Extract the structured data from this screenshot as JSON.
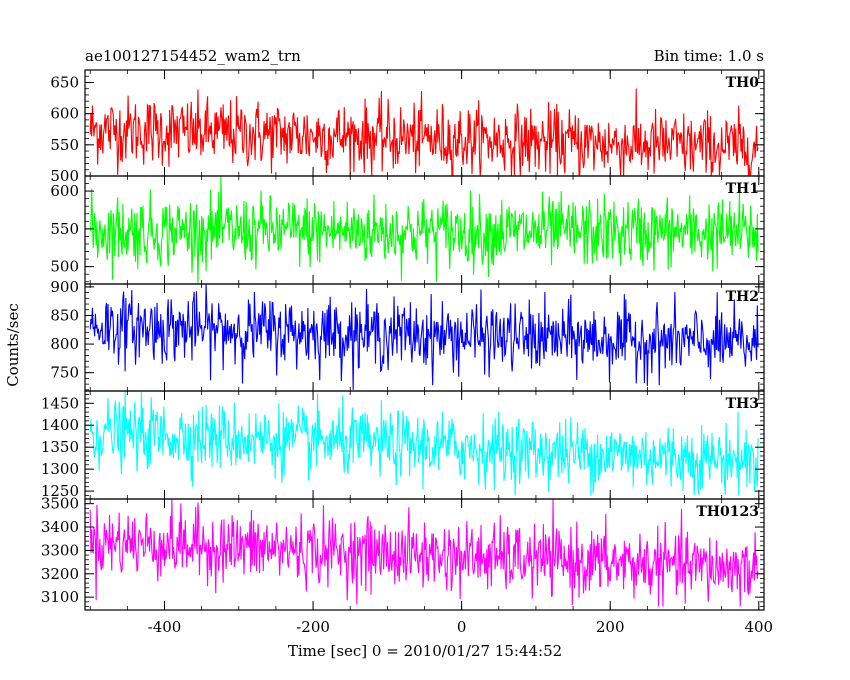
{
  "chart_data": {
    "type": "line",
    "title": "ae100127154452_wam2_trn",
    "subtitle": "Bin time: 1.0 s",
    "xlabel": "Time [sec] 0 = 2010/01/27 15:44:52",
    "ylabel": "Counts/sec",
    "xlim": [
      -507,
      407
    ],
    "x_ticks": [
      -400,
      -200,
      0,
      200,
      400
    ],
    "x_range": [
      -500,
      399
    ],
    "x_step": 1,
    "grid": false,
    "panels": [
      {
        "name": "TH0",
        "color": "#ff0000",
        "ylim": [
          500,
          670
        ],
        "y_ticks": [
          500,
          550,
          600,
          650
        ],
        "y_trend": [
          575,
          545
        ],
        "y_min_seen": 500,
        "y_max_seen": 670
      },
      {
        "name": "TH1",
        "color": "#00ff00",
        "ylim": [
          477,
          620
        ],
        "y_ticks": [
          500,
          550,
          600
        ],
        "y_trend": [
          548,
          545
        ],
        "y_min_seen": 478,
        "y_max_seen": 620
      },
      {
        "name": "TH2",
        "color": "#0000ff",
        "ylim": [
          718,
          905
        ],
        "y_ticks": [
          750,
          800,
          850,
          900
        ],
        "y_trend": [
          832,
          800
        ],
        "y_min_seen": 720,
        "y_max_seen": 905
      },
      {
        "name": "TH3",
        "color": "#00ffff",
        "ylim": [
          1232,
          1478
        ],
        "y_ticks": [
          1250,
          1300,
          1350,
          1400,
          1450
        ],
        "y_trend": [
          1385,
          1320
        ],
        "y_min_seen": 1240,
        "y_max_seen": 1478
      },
      {
        "name": "TH0123",
        "color": "#ff00ff",
        "ylim": [
          3045,
          3520
        ],
        "y_ticks": [
          3100,
          3200,
          3300,
          3400,
          3500
        ],
        "y_trend": [
          3340,
          3220
        ],
        "y_min_seen": 3060,
        "y_max_seen": 3520
      }
    ]
  }
}
